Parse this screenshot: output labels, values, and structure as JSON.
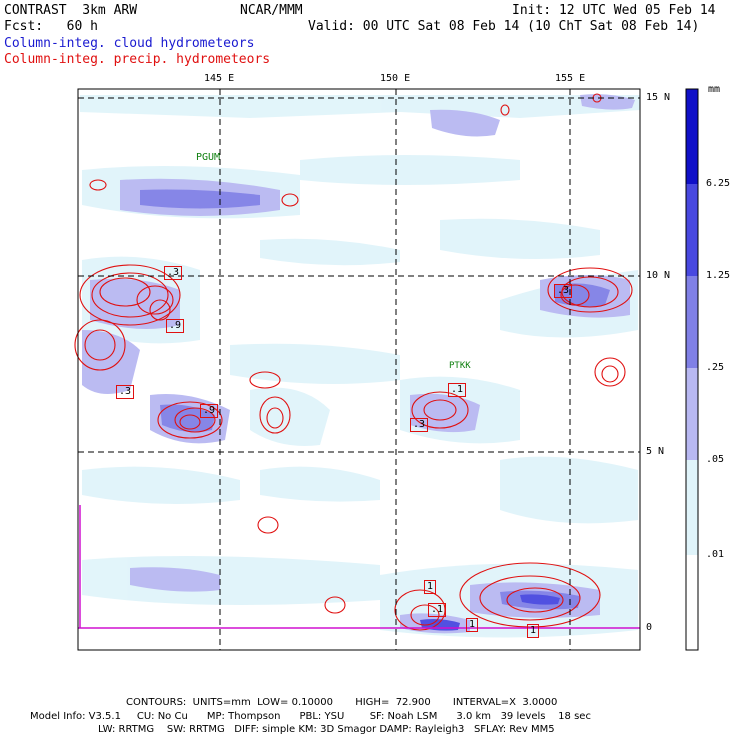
{
  "header": {
    "title": "CONTRAST  3km ARW",
    "center": "NCAR/MMM",
    "init": "Init: 12 UTC Wed 05 Feb 14",
    "fcst": "Fcst:   60 h",
    "valid": "Valid: 00 UTC Sat 08 Feb 14 (10 ChT Sat 08 Feb 14)",
    "field1": "Column-integ. cloud hydrometeors",
    "field2": "Column-integ. precip. hydrometeors"
  },
  "map": {
    "lon_labels": [
      "145 E",
      "150 E",
      "155 E"
    ],
    "lat_labels": [
      "15 N",
      "10 N",
      "5 N",
      "0"
    ],
    "stations": [
      "PGUM",
      "PTKK"
    ],
    "contour_labels": [
      ".3",
      ".9",
      ".3",
      ".3",
      ".9",
      ".1",
      ".3",
      "1",
      "1",
      ".1",
      "1"
    ]
  },
  "legend": {
    "unit": "mm",
    "levels": [
      "6.25",
      "1.25",
      ".25",
      ".05",
      ".01"
    ],
    "colors": [
      "#1010c8",
      "#4848e0",
      "#8080e6",
      "#b8b8f2",
      "#e0f4fa",
      "#ffffff"
    ]
  },
  "footer": {
    "contours_label": "CONTOURS:  UNITS=mm  LOW= 0.10000       HIGH=  72.900       INTERVAL=X  3.0000",
    "model_line1": "Model Info: V3.5.1     CU: No Cu      MP: Thompson      PBL: YSU        SF: Noah LSM      3.0 km   39 levels    18 sec",
    "model_line2": "LW: RRTMG    SW: RRTMG   DIFF: simple KM: 3D Smagor DAMP: Rayleigh3   SFLAY: Rev MM5"
  }
}
